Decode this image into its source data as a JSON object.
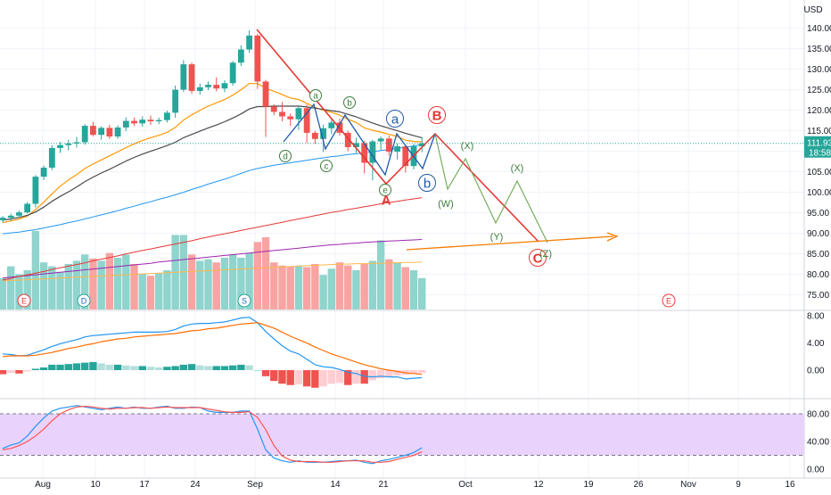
{
  "header": {
    "currency": "USD"
  },
  "chart_data": {
    "type": "candlestick",
    "last_price": "111.93",
    "countdown": "18:58",
    "price_axis": {
      "ticks": [
        "75.00",
        "80.00",
        "85.00",
        "90.00",
        "95.00",
        "100.00",
        "105.00",
        "110.00",
        "115.00",
        "120.00",
        "125.00",
        "130.00",
        "135.00",
        "140.00"
      ],
      "range": [
        71,
        145
      ]
    },
    "time_axis": {
      "labels": [
        "Aug",
        "10",
        "17",
        "24",
        "Sep",
        "14",
        "21",
        "Oct",
        "12",
        "19",
        "26",
        "Nov",
        "9",
        "16"
      ]
    },
    "candles": [
      [
        93.2,
        94.2,
        92.6,
        93.8
      ],
      [
        93.8,
        94.8,
        93.0,
        94.3
      ],
      [
        94.3,
        95.5,
        93.8,
        95.1
      ],
      [
        95.1,
        97.6,
        94.8,
        97.2
      ],
      [
        97.2,
        104.2,
        96.3,
        103.8
      ],
      [
        103.8,
        106.5,
        103.0,
        106.0
      ],
      [
        106.0,
        111.5,
        105.4,
        110.8
      ],
      [
        110.8,
        112.3,
        109.6,
        111.5
      ],
      [
        111.5,
        112.8,
        110.2,
        111.9
      ],
      [
        111.9,
        113.5,
        110.9,
        112.2
      ],
      [
        112.2,
        116.6,
        111.6,
        116.2
      ],
      [
        116.2,
        117.2,
        113.6,
        114.0
      ],
      [
        114.0,
        116.1,
        112.8,
        115.7
      ],
      [
        115.7,
        116.4,
        113.0,
        113.6
      ],
      [
        113.6,
        116.3,
        113.0,
        115.8
      ],
      [
        115.8,
        118.3,
        114.9,
        117.4
      ],
      [
        117.4,
        118.2,
        116.2,
        116.8
      ],
      [
        116.8,
        118.5,
        116.0,
        117.7
      ],
      [
        117.7,
        118.7,
        116.4,
        117.3
      ],
      [
        117.3,
        118.2,
        116.6,
        117.6
      ],
      [
        117.6,
        119.9,
        117.0,
        119.4
      ],
      [
        119.4,
        126.0,
        118.2,
        125.0
      ],
      [
        125.0,
        132.2,
        124.5,
        131.2
      ],
      [
        131.2,
        131.6,
        124.0,
        124.7
      ],
      [
        124.7,
        126.5,
        123.8,
        125.6
      ],
      [
        125.6,
        127.0,
        124.9,
        126.2
      ],
      [
        126.2,
        128.0,
        124.6,
        125.3
      ],
      [
        125.3,
        127.3,
        124.4,
        126.6
      ],
      [
        126.6,
        132.0,
        126.0,
        131.6
      ],
      [
        131.6,
        135.8,
        130.8,
        134.8
      ],
      [
        134.8,
        139.5,
        134.0,
        138.2
      ],
      [
        138.2,
        138.6,
        125.2,
        127.0
      ],
      [
        127.0,
        127.4,
        113.5,
        120.9
      ],
      [
        120.9,
        121.5,
        118.8,
        119.6
      ],
      [
        119.6,
        122.0,
        117.3,
        118.5
      ],
      [
        118.5,
        119.2,
        116.2,
        117.8
      ],
      [
        117.8,
        121.0,
        115.2,
        120.5
      ],
      [
        120.5,
        121.4,
        112.0,
        114.5
      ],
      [
        114.5,
        115.0,
        111.8,
        113.0
      ],
      [
        113.0,
        116.5,
        109.8,
        115.6
      ],
      [
        115.6,
        117.8,
        114.2,
        117.0
      ],
      [
        117.0,
        118.0,
        113.8,
        114.5
      ],
      [
        114.5,
        115.0,
        110.0,
        111.0
      ],
      [
        111.0,
        113.3,
        109.6,
        112.0
      ],
      [
        112.0,
        112.5,
        104.6,
        107.2
      ],
      [
        107.2,
        112.8,
        102.9,
        112.4
      ],
      [
        112.4,
        113.6,
        110.3,
        113.1
      ],
      [
        113.1,
        113.8,
        108.9,
        109.9
      ],
      [
        109.9,
        111.9,
        108.0,
        111.2
      ],
      [
        111.2,
        111.6,
        104.8,
        106.4
      ],
      [
        106.4,
        111.8,
        105.6,
        111.2
      ],
      [
        111.2,
        113.5,
        109.8,
        111.93
      ]
    ],
    "sma_black": [
      93.2,
      93.5,
      93.9,
      94.4,
      95.2,
      96.4,
      97.8,
      99.0,
      100.1,
      101.3,
      102.6,
      103.7,
      104.7,
      105.6,
      106.6,
      107.6,
      108.5,
      109.3,
      110.0,
      110.7,
      111.4,
      112.2,
      113.3,
      114.1,
      114.9,
      115.7,
      116.4,
      117.2,
      118.1,
      119.1,
      120.3,
      120.9,
      120.9,
      121.0,
      121.0,
      121.0,
      121.0,
      120.8,
      120.5,
      120.2,
      119.9,
      119.6,
      119.0,
      118.4,
      117.6,
      116.9,
      116.2,
      115.6,
      115.0,
      114.4,
      113.8,
      113.3
    ],
    "ema_orange": [
      92.6,
      93.0,
      93.5,
      94.2,
      95.8,
      97.6,
      99.6,
      101.5,
      103.0,
      104.3,
      105.8,
      106.9,
      107.9,
      108.9,
      109.9,
      110.9,
      111.8,
      112.6,
      113.3,
      113.9,
      114.6,
      115.8,
      117.6,
      118.9,
      120.0,
      121.0,
      121.8,
      122.6,
      123.7,
      125.0,
      126.5,
      126.5,
      125.4,
      124.6,
      123.8,
      123.0,
      122.6,
      121.7,
      120.7,
      120.0,
      119.5,
      118.8,
      117.8,
      117.0,
      115.7,
      115.1,
      114.7,
      114.1,
      113.6,
      112.7,
      112.4,
      112.3
    ],
    "sma_blue": [
      89.9,
      90.1,
      90.3,
      90.6,
      90.9,
      91.3,
      91.7,
      92.1,
      92.6,
      93.0,
      93.5,
      94.0,
      94.5,
      95.0,
      95.5,
      96.1,
      96.6,
      97.2,
      97.7,
      98.3,
      98.8,
      99.4,
      100.0,
      100.7,
      101.3,
      102.0,
      102.6,
      103.2,
      103.9,
      104.6,
      105.3,
      105.8,
      106.2,
      106.6,
      106.9,
      107.2,
      107.5,
      107.8,
      108.1,
      108.4,
      108.7,
      108.9,
      109.2,
      109.4,
      109.6,
      109.9,
      110.2,
      110.4,
      110.7,
      111.0,
      111.3,
      111.6
    ],
    "sma_red": [
      78.6,
      79.0,
      79.5,
      79.9,
      80.3,
      80.7,
      81.2,
      81.6,
      82.0,
      82.4,
      82.8,
      83.3,
      83.7,
      84.1,
      84.5,
      85.0,
      85.4,
      85.8,
      86.2,
      86.6,
      87.0,
      87.4,
      87.8,
      88.2,
      88.7,
      89.1,
      89.5,
      89.9,
      90.3,
      90.7,
      91.1,
      91.5,
      91.9,
      92.3,
      92.7,
      93.1,
      93.5,
      93.9,
      94.3,
      94.7,
      95.1,
      95.4,
      95.8,
      96.1,
      96.5,
      96.8,
      97.2,
      97.5,
      97.8,
      98.1,
      98.4,
      98.7
    ],
    "sma_purple": [
      79.1,
      79.3,
      79.5,
      79.7,
      79.9,
      80.1,
      80.3,
      80.5,
      80.7,
      80.9,
      81.1,
      81.3,
      81.5,
      81.7,
      81.9,
      82.1,
      82.3,
      82.5,
      82.7,
      83.0,
      83.2,
      83.4,
      83.6,
      83.8,
      84.0,
      84.2,
      84.4,
      84.6,
      84.8,
      85.0,
      85.2,
      85.4,
      85.6,
      85.8,
      86.0,
      86.2,
      86.4,
      86.6,
      86.8,
      87.0,
      87.2,
      87.3,
      87.5,
      87.6,
      87.8,
      87.9,
      88.0,
      88.1,
      88.2,
      88.3,
      88.4,
      88.5
    ],
    "sma_orange_thin": [
      78.4,
      78.5,
      78.6,
      78.7,
      78.8,
      78.9,
      79.0,
      79.1,
      79.2,
      79.3,
      79.4,
      79.5,
      79.6,
      79.7,
      79.8,
      79.9,
      80.0,
      80.1,
      80.2,
      80.3,
      80.4,
      80.5,
      80.6,
      80.7,
      80.8,
      80.9,
      81.0,
      81.1,
      81.2,
      81.3,
      81.4,
      81.5,
      81.6,
      81.7,
      81.8,
      81.9,
      82.0,
      82.1,
      82.2,
      82.3,
      82.4,
      82.5,
      82.5,
      82.6,
      82.6,
      82.7,
      82.7,
      82.8,
      82.8,
      82.9,
      82.9,
      83.0
    ],
    "volume": [
      0.4,
      0.55,
      0.45,
      0.5,
      1.0,
      0.6,
      0.55,
      0.48,
      0.58,
      0.62,
      0.7,
      0.65,
      0.62,
      0.72,
      0.66,
      0.7,
      0.58,
      0.45,
      0.43,
      0.46,
      0.5,
      0.95,
      0.95,
      0.7,
      0.62,
      0.64,
      0.6,
      0.66,
      0.7,
      0.66,
      0.72,
      0.86,
      0.92,
      0.6,
      0.56,
      0.55,
      0.56,
      0.54,
      0.58,
      0.44,
      0.52,
      0.6,
      0.56,
      0.5,
      0.58,
      0.62,
      0.88,
      0.64,
      0.6,
      0.54,
      0.5,
      0.4
    ],
    "macd": {
      "ticks": [
        "8.00",
        "4.00",
        "0.00"
      ],
      "range": [
        -3,
        9
      ],
      "macd_line": [
        2.4,
        2.3,
        2.1,
        2.2,
        2.6,
        3.0,
        3.5,
        3.9,
        4.2,
        4.5,
        4.9,
        5.1,
        5.2,
        5.3,
        5.4,
        5.5,
        5.6,
        5.6,
        5.6,
        5.6,
        5.7,
        6.0,
        6.5,
        6.8,
        6.9,
        6.9,
        7.0,
        7.1,
        7.4,
        7.7,
        7.8,
        7.0,
        5.7,
        4.6,
        3.6,
        2.8,
        2.4,
        1.6,
        0.8,
        0.5,
        0.4,
        0.1,
        -0.3,
        -0.5,
        -0.9,
        -1.0,
        -0.9,
        -1.0,
        -1.0,
        -1.3,
        -1.2,
        -1.1
      ],
      "signal_line": [
        2.0,
        2.1,
        2.1,
        2.1,
        2.2,
        2.4,
        2.6,
        2.9,
        3.2,
        3.4,
        3.7,
        3.9,
        4.2,
        4.4,
        4.6,
        4.7,
        4.9,
        5.0,
        5.1,
        5.2,
        5.3,
        5.4,
        5.6,
        5.8,
        5.9,
        6.1,
        6.2,
        6.4,
        6.6,
        6.8,
        6.9,
        7.0,
        6.6,
        6.2,
        5.6,
        5.0,
        4.5,
        4.0,
        3.4,
        2.9,
        2.4,
        2.0,
        1.6,
        1.2,
        0.8,
        0.5,
        0.2,
        0.0,
        -0.2,
        -0.4,
        -0.5,
        -0.6
      ],
      "histogram": [
        -0.6,
        -0.4,
        -0.5,
        -0.2,
        0.2,
        0.4,
        0.8,
        0.8,
        0.9,
        1.0,
        1.1,
        1.2,
        1.0,
        0.8,
        0.8,
        0.7,
        0.6,
        0.6,
        0.5,
        0.4,
        0.5,
        0.6,
        0.8,
        0.9,
        0.7,
        0.6,
        0.6,
        0.6,
        0.7,
        0.8,
        0.7,
        0.0,
        -0.9,
        -1.6,
        -2.0,
        -2.2,
        -2.1,
        -2.4,
        -2.6,
        -2.4,
        -2.0,
        -1.9,
        -2.2,
        -2.0,
        -2.0,
        -1.5,
        -1.2,
        -1.0,
        -0.8,
        -0.7,
        -0.5,
        -0.4
      ]
    },
    "stoch": {
      "ticks": [
        "80.00",
        "40.00",
        "0.00"
      ],
      "range": [
        -5,
        100
      ],
      "band": [
        20,
        80
      ],
      "k": [
        30,
        35,
        38,
        48,
        62,
        74,
        84,
        88,
        90,
        92,
        90,
        88,
        86,
        88,
        90,
        88,
        90,
        88,
        88,
        90,
        91,
        88,
        88,
        90,
        89,
        84,
        82,
        82,
        82,
        84,
        84,
        58,
        28,
        16,
        12,
        10,
        12,
        10,
        10,
        10,
        11,
        12,
        12,
        13,
        10,
        8,
        12,
        14,
        17,
        20,
        24,
        31
      ],
      "d": [
        28,
        30,
        34,
        40,
        48,
        58,
        70,
        80,
        86,
        90,
        91,
        90,
        88,
        87,
        88,
        88,
        89,
        89,
        88,
        89,
        90,
        89,
        89,
        89,
        89,
        87,
        85,
        83,
        82,
        82,
        83,
        75,
        57,
        34,
        19,
        13,
        11,
        11,
        11,
        10,
        10,
        11,
        12,
        12,
        12,
        10,
        10,
        11,
        14,
        17,
        20,
        25
      ]
    },
    "events": [
      "E",
      "D",
      "S",
      "E"
    ],
    "wave_labels": [
      "a",
      "b",
      "c",
      "d",
      "e",
      "a",
      "b",
      "A",
      "B",
      "C",
      "(W)",
      "(X)",
      "(Y)",
      "(X)",
      "(Z)"
    ]
  },
  "colors": {
    "up": "#26a69a",
    "down": "#ef5350",
    "up_vol": "#8fd4cd",
    "down_vol": "#f7a4a2",
    "grid": "#f0f3fa",
    "axis_text": "#131722",
    "sma_black": "#4a4a4a",
    "ema_orange": "#ff9800",
    "sma_blue": "#2196f3",
    "sma_red": "#e53935",
    "sma_purple": "#9c27b0",
    "pred_green": "#6aa84f",
    "label_red": "#e53935",
    "label_blue": "#1e5aa8",
    "label_green": "#3c7d3c",
    "macd_line": "#2196f3",
    "signal_line": "#ff6d00",
    "stoch_band": "#e9d3fc",
    "stoch_k": "#2196f3",
    "stoch_d": "#ff5252"
  }
}
